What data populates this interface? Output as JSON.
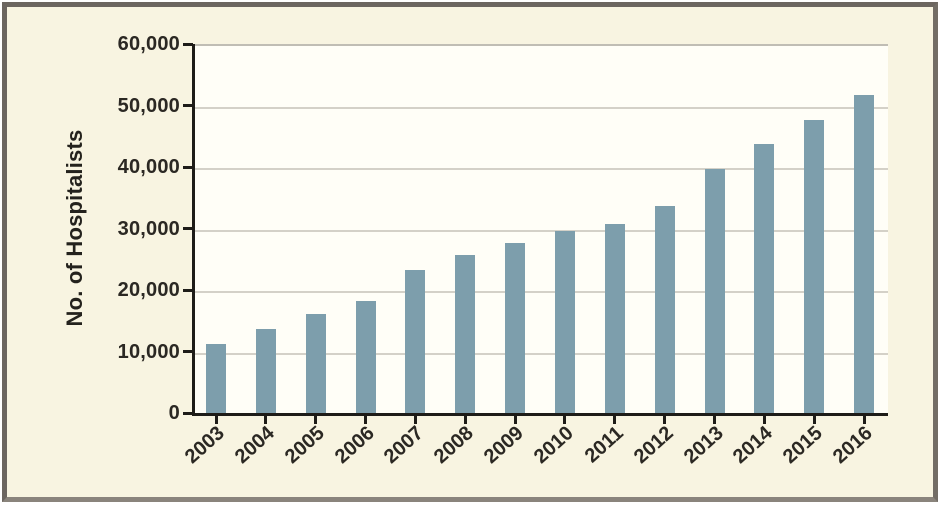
{
  "figure": {
    "background_color": "#f8f4e1",
    "plot_background_color": "#fffef7",
    "frame_border_color": "#6c6660",
    "axis_color": "#1e1c18",
    "text_color": "#2b2823"
  },
  "chart_data": {
    "type": "bar",
    "title": "",
    "xlabel": "",
    "ylabel": "No. of Hospitalists",
    "categories": [
      "2003",
      "2004",
      "2005",
      "2006",
      "2007",
      "2008",
      "2009",
      "2010",
      "2011",
      "2012",
      "2013",
      "2014",
      "2015",
      "2016"
    ],
    "values": [
      11500,
      14000,
      16500,
      18500,
      23500,
      26000,
      28000,
      30000,
      31000,
      34000,
      40000,
      44000,
      48000,
      52000
    ],
    "series": [
      {
        "name": "No. of Hospitalists",
        "values": [
          11500,
          14000,
          16500,
          18500,
          23500,
          26000,
          28000,
          30000,
          31000,
          34000,
          40000,
          44000,
          48000,
          52000
        ]
      }
    ],
    "ylim": [
      0,
      60000
    ],
    "y_ticks": [
      0,
      10000,
      20000,
      30000,
      40000,
      50000,
      60000
    ],
    "y_tick_labels": [
      "0",
      "10,000",
      "20,000",
      "30,000",
      "40,000",
      "50,000",
      "60,000"
    ],
    "grid": "horizontal",
    "legend": "none",
    "bar_color": "#7d9eac",
    "gridline_color": "#d4d1c8"
  }
}
